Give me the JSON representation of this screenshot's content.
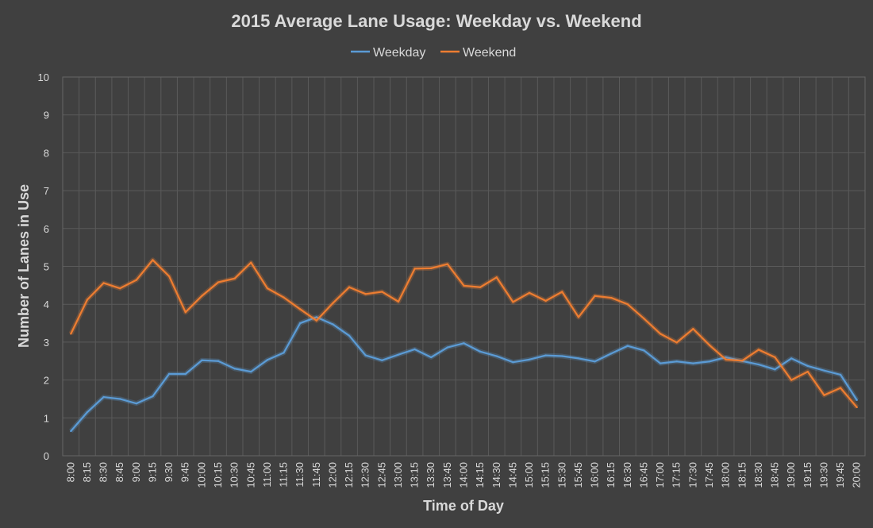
{
  "chart_data": {
    "type": "line",
    "title": "2015 Average Lane Usage: Weekday vs. Weekend",
    "xlabel": "Time of Day",
    "ylabel": "Number of Lanes in Use",
    "ylim": [
      0,
      10
    ],
    "yticks": [
      0,
      1,
      2,
      3,
      4,
      5,
      6,
      7,
      8,
      9,
      10
    ],
    "grid": true,
    "legend_position": "top",
    "categories": [
      "8:00",
      "8:15",
      "8:30",
      "8:45",
      "9:00",
      "9:15",
      "9:30",
      "9:45",
      "10:00",
      "10:15",
      "10:30",
      "10:45",
      "11:00",
      "11:15",
      "11:30",
      "11:45",
      "12:00",
      "12:15",
      "12:30",
      "12:45",
      "13:00",
      "13:15",
      "13:30",
      "13:45",
      "14:00",
      "14:15",
      "14:30",
      "14:45",
      "15:00",
      "15:15",
      "15:30",
      "15:45",
      "16:00",
      "16:15",
      "16:30",
      "16:45",
      "17:00",
      "17:15",
      "17:30",
      "17:45",
      "18:00",
      "18:15",
      "18:30",
      "18:45",
      "19:00",
      "19:15",
      "19:30",
      "19:45",
      "20:00"
    ],
    "series": [
      {
        "name": "Weekday",
        "color": "#5b9bd5",
        "values": [
          0.65,
          1.15,
          1.55,
          1.5,
          1.38,
          1.57,
          2.16,
          2.16,
          2.52,
          2.5,
          2.3,
          2.22,
          2.53,
          2.72,
          3.5,
          3.66,
          3.47,
          3.17,
          2.65,
          2.52,
          2.67,
          2.81,
          2.6,
          2.86,
          2.97,
          2.75,
          2.63,
          2.47,
          2.54,
          2.65,
          2.63,
          2.57,
          2.49,
          2.7,
          2.9,
          2.78,
          2.44,
          2.49,
          2.44,
          2.49,
          2.6,
          2.5,
          2.41,
          2.28,
          2.57,
          2.37,
          2.25,
          2.14,
          1.47
        ]
      },
      {
        "name": "Weekend",
        "color": "#ed7d31",
        "values": [
          3.22,
          4.12,
          4.56,
          4.42,
          4.64,
          5.17,
          4.74,
          3.79,
          4.22,
          4.58,
          4.68,
          5.1,
          4.42,
          4.18,
          3.87,
          3.57,
          4.03,
          4.45,
          4.27,
          4.33,
          4.07,
          4.94,
          4.95,
          5.06,
          4.49,
          4.45,
          4.71,
          4.06,
          4.3,
          4.09,
          4.33,
          3.66,
          4.22,
          4.17,
          4.0,
          3.62,
          3.22,
          2.99,
          3.35,
          2.92,
          2.54,
          2.51,
          2.8,
          2.6,
          2.0,
          2.22,
          1.6,
          1.79,
          1.28
        ]
      }
    ]
  }
}
